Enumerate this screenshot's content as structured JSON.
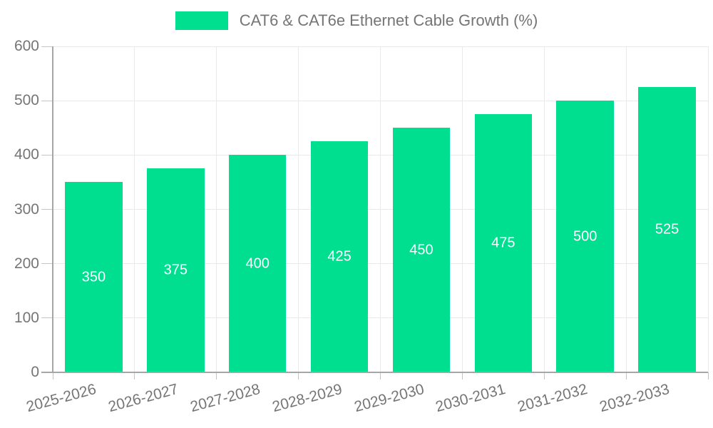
{
  "chart_data": {
    "type": "bar",
    "title": "CAT6 & CAT6e Ethernet Cable Growth (%)",
    "categories": [
      "2025-2026",
      "2026-2027",
      "2027-2028",
      "2028-2029",
      "2029-2030",
      "2030-2031",
      "2031-2032",
      "2032-2033"
    ],
    "values": [
      350,
      375,
      400,
      425,
      450,
      475,
      500,
      525
    ],
    "xlabel": "",
    "ylabel": "",
    "ylim": [
      0,
      600
    ],
    "y_ticks": [
      0,
      100,
      200,
      300,
      400,
      500,
      600
    ],
    "grid": true,
    "legend_position": "top",
    "bar_color": "#00DF8F",
    "value_label_color": "#ffffff",
    "axis_text_color": "#757575",
    "grid_color": "#e9e9e9",
    "tick_color": "#c4c4c4",
    "axis_line_color": "#a6a6a6"
  }
}
